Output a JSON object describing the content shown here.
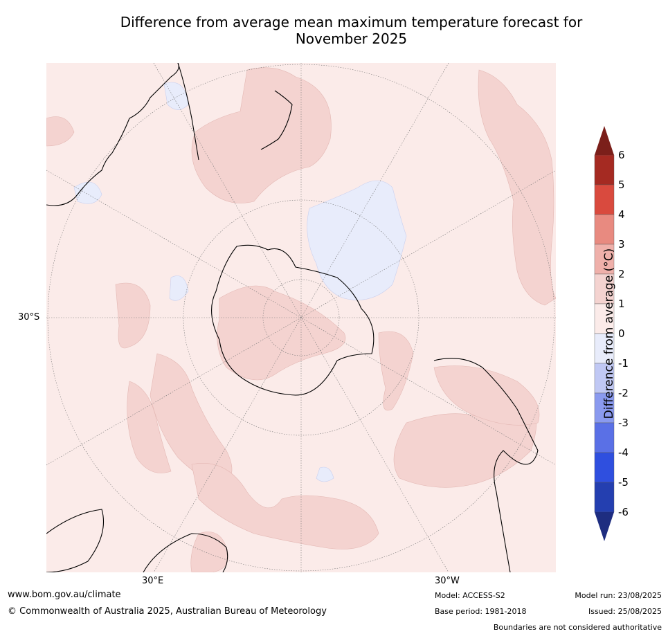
{
  "title_line1": "Difference from average mean maximum temperature forecast for",
  "title_line2": "November 2025",
  "labels": {
    "lat_30s": "30°S",
    "lon_30e": "30°E",
    "lon_30w": "30°W"
  },
  "legend": {
    "title": "Difference from average (°C)",
    "ticks": [
      "6",
      "5",
      "4",
      "3",
      "2",
      "1",
      "0",
      "-1",
      "-2",
      "-3",
      "-4",
      "-5",
      "-6"
    ],
    "bins": [
      {
        "range": "5 to 6",
        "color": "#a52a22"
      },
      {
        "range": "4 to 5",
        "color": "#d94a3e"
      },
      {
        "range": "3 to 4",
        "color": "#e88a80"
      },
      {
        "range": "2 to 3",
        "color": "#efb0aa"
      },
      {
        "range": "1 to 2",
        "color": "#f4d3d0"
      },
      {
        "range": "0 to 1",
        "color": "#fbebe9"
      },
      {
        "range": "-1 to 0",
        "color": "#e8ecfb"
      },
      {
        "range": "-2 to -1",
        "color": "#c0c8f4"
      },
      {
        "range": "-3 to -2",
        "color": "#8a9aef"
      },
      {
        "range": "-4 to -3",
        "color": "#5a70e6"
      },
      {
        "range": "-5 to -4",
        "color": "#2f4fdf"
      },
      {
        "range": "-6 to -5",
        "color": "#243fb0"
      }
    ],
    "over_color": "#7b1f1a",
    "under_color": "#1e2d80"
  },
  "footer": {
    "url": "www.bom.gov.au/climate",
    "copyright": "© Commonwealth of Australia 2025, Australian Bureau of Meteorology",
    "model": "Model: ACCESS-S2",
    "base_period": "Base period: 1981-2018",
    "model_run": "Model run: 23/08/2025",
    "issued": "Issued: 25/08/2025",
    "disclaimer": "Boundaries are not considered authoritative"
  }
}
